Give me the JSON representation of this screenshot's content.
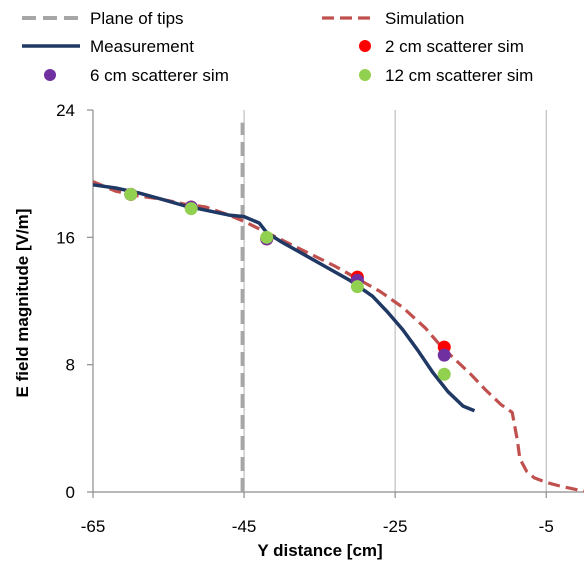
{
  "chart_data": {
    "type": "line",
    "title": "",
    "xlabel": "Y distance [cm]",
    "ylabel": "E field magnitude [V/m]",
    "xlim": [
      -65,
      0
    ],
    "ylim": [
      0,
      24
    ],
    "x_ticks": [
      -65,
      -45,
      -25,
      -5
    ],
    "y_ticks": [
      0,
      8,
      16,
      24
    ],
    "grid": "vertical",
    "legend_position": "top",
    "legend_order": [
      "Plane of tips",
      "Simulation",
      "Measurement",
      "2 cm scatterer sim",
      "6 cm scatterer sim",
      "12 cm scatterer sim"
    ],
    "series": [
      {
        "name": "Plane of tips",
        "style": "dashed-line",
        "color": "#a6a6a6",
        "x": [
          -45.2,
          -45.2
        ],
        "y": [
          0,
          23.2
        ]
      },
      {
        "name": "Simulation",
        "style": "dashed-line",
        "color": "#c0504d",
        "x": [
          -65,
          -62,
          -59,
          -56,
          -53,
          -50,
          -47,
          -45,
          -42,
          -39,
          -36,
          -33,
          -30,
          -27,
          -24,
          -21,
          -19,
          -17,
          -15,
          -13,
          -11,
          -9.5,
          -8.8,
          -8.5,
          -7.6,
          -6.6,
          -5,
          -3,
          -1,
          0
        ],
        "y": [
          19.5,
          18.9,
          18.6,
          18.4,
          18.1,
          17.9,
          17.4,
          17.0,
          16.3,
          15.6,
          14.9,
          14.2,
          13.4,
          12.6,
          11.6,
          10.3,
          9.2,
          8.3,
          7.4,
          6.4,
          5.5,
          5.0,
          3.2,
          2.1,
          1.3,
          0.9,
          0.6,
          0.35,
          0.15,
          0.05
        ]
      },
      {
        "name": "Measurement",
        "style": "solid-line",
        "color": "#1f3864",
        "x": [
          -65,
          -62,
          -59,
          -56,
          -53,
          -50,
          -47,
          -45,
          -43,
          -42,
          -40,
          -37,
          -34,
          -31,
          -28,
          -26,
          -24,
          -22,
          -20,
          -18,
          -16,
          -14.5
        ],
        "y": [
          19.3,
          19.1,
          18.8,
          18.4,
          18.0,
          17.7,
          17.4,
          17.3,
          16.9,
          16.3,
          15.7,
          14.9,
          14.1,
          13.3,
          12.3,
          11.3,
          10.2,
          8.9,
          7.5,
          6.3,
          5.4,
          5.1
        ]
      },
      {
        "name": "2 cm scatterer sim",
        "style": "marker",
        "color": "#ff0000",
        "x": [
          -60,
          -52,
          -42,
          -30,
          -18.5
        ],
        "y": [
          18.7,
          17.9,
          15.9,
          13.5,
          9.1
        ]
      },
      {
        "name": "6 cm scatterer sim",
        "style": "marker",
        "color": "#7030a0",
        "x": [
          -60,
          -52,
          -42,
          -30,
          -18.5
        ],
        "y": [
          18.7,
          17.9,
          15.9,
          13.3,
          8.6
        ]
      },
      {
        "name": "12 cm scatterer sim",
        "style": "marker",
        "color": "#92d050",
        "x": [
          -60,
          -52,
          -42,
          -30,
          -18.5
        ],
        "y": [
          18.7,
          17.8,
          16.0,
          12.9,
          7.4
        ]
      }
    ]
  }
}
